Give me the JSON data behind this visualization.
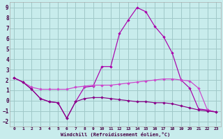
{
  "bg_color": "#c8ecec",
  "grid_color": "#a0c8c8",
  "xlim": [
    -0.5,
    23.5
  ],
  "ylim": [
    -2.5,
    9.5
  ],
  "yticks": [
    -2,
    -1,
    0,
    1,
    2,
    3,
    4,
    5,
    6,
    7,
    8,
    9
  ],
  "xticks": [
    0,
    1,
    2,
    3,
    4,
    5,
    6,
    7,
    8,
    9,
    10,
    11,
    12,
    13,
    14,
    15,
    16,
    17,
    18,
    19,
    20,
    21,
    22,
    23
  ],
  "xlabel": "Windchill (Refroidissement éolien,°C)",
  "line1_x": [
    0,
    1,
    2,
    3,
    4,
    5,
    6,
    7,
    8,
    9,
    10,
    11,
    12,
    13,
    14,
    15,
    16,
    17,
    18,
    19,
    20,
    21,
    22,
    23
  ],
  "line1_y": [
    2.2,
    1.8,
    1.1,
    0.2,
    -0.1,
    -0.2,
    -1.7,
    -0.1,
    1.3,
    1.4,
    3.3,
    3.3,
    6.5,
    7.8,
    9.0,
    8.6,
    7.2,
    6.2,
    4.6,
    2.0,
    1.2,
    -0.8,
    -0.9,
    -1.1
  ],
  "line2_x": [
    0,
    1,
    2,
    3,
    4,
    5,
    6,
    7,
    8,
    9,
    10,
    11,
    12,
    13,
    14,
    15,
    16,
    17,
    18,
    19,
    20,
    21,
    22,
    23
  ],
  "line2_y": [
    2.2,
    1.8,
    1.3,
    1.1,
    1.1,
    1.1,
    1.1,
    1.3,
    1.4,
    1.5,
    1.5,
    1.5,
    1.6,
    1.7,
    1.8,
    1.9,
    2.0,
    2.1,
    2.1,
    2.0,
    1.9,
    1.2,
    -0.9,
    -1.1
  ],
  "line3_x": [
    0,
    1,
    2,
    3,
    4,
    5,
    6,
    7,
    8,
    9,
    10,
    11,
    12,
    13,
    14,
    15,
    16,
    17,
    18,
    19,
    20,
    21,
    22,
    23
  ],
  "line3_y": [
    2.2,
    1.8,
    1.1,
    0.2,
    -0.1,
    -0.2,
    -1.7,
    -0.1,
    0.2,
    0.3,
    0.3,
    0.2,
    0.1,
    0.0,
    -0.1,
    -0.1,
    -0.2,
    -0.2,
    -0.3,
    -0.5,
    -0.7,
    -0.9,
    -1.0,
    -1.1
  ],
  "line_color1": "#aa00aa",
  "line_color2": "#cc44cc",
  "line_color3": "#880088"
}
